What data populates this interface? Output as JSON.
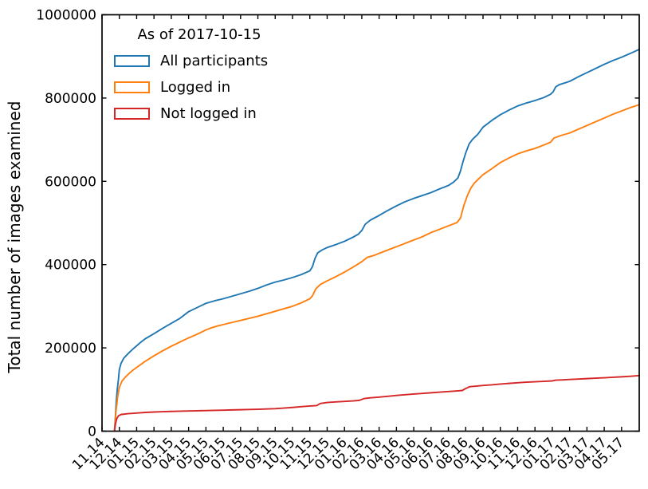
{
  "legend": {
    "title": "As of 2017-10-15"
  },
  "chart_data": {
    "type": "line",
    "title": "",
    "xlabel": "",
    "ylabel": "Total number of images examined",
    "grid": false,
    "legend_position": "upper left",
    "background_color": "#ffffff",
    "spine_color": "#000000",
    "xlim": [
      0,
      31.02
    ],
    "ylim": [
      0,
      1000000
    ],
    "x_unit": "month ticks, 0 = 11.14 (Nov 2014), 1 per month",
    "x_tick_labels": [
      "11.14",
      "12.14",
      "01.15",
      "02.15",
      "03.15",
      "04.15",
      "05.15",
      "06.15",
      "07.15",
      "08.15",
      "09.15",
      "10.15",
      "11.15",
      "12.15",
      "01.16",
      "02.16",
      "03.16",
      "04.16",
      "05.16",
      "06.16",
      "07.16",
      "08.16",
      "09.16",
      "10.16",
      "11.16",
      "12.16",
      "01.17",
      "02.17",
      "03.17",
      "04.17",
      "05.17"
    ],
    "y_ticks": [
      0,
      200000,
      400000,
      600000,
      800000,
      1000000
    ],
    "series": [
      {
        "name": "All participants",
        "color": "#1f77b4",
        "points": [
          [
            0.72,
            0
          ],
          [
            0.78,
            40000
          ],
          [
            0.82,
            70000
          ],
          [
            0.88,
            100000
          ],
          [
            0.95,
            125000
          ],
          [
            1.0,
            148000
          ],
          [
            1.1,
            163000
          ],
          [
            1.25,
            175000
          ],
          [
            1.5,
            186000
          ],
          [
            1.75,
            196000
          ],
          [
            2.0,
            205000
          ],
          [
            2.25,
            214000
          ],
          [
            2.5,
            222000
          ],
          [
            3.0,
            234000
          ],
          [
            3.5,
            247000
          ],
          [
            4.0,
            259000
          ],
          [
            4.5,
            271000
          ],
          [
            5.0,
            287000
          ],
          [
            5.3,
            293000
          ],
          [
            5.6,
            299000
          ],
          [
            6.0,
            307000
          ],
          [
            6.5,
            313000
          ],
          [
            7.0,
            318000
          ],
          [
            7.5,
            324000
          ],
          [
            8.0,
            330000
          ],
          [
            8.5,
            336000
          ],
          [
            9.0,
            343000
          ],
          [
            9.5,
            351000
          ],
          [
            10.0,
            358000
          ],
          [
            10.5,
            363000
          ],
          [
            11.0,
            369000
          ],
          [
            11.5,
            376000
          ],
          [
            12.0,
            385000
          ],
          [
            12.15,
            395000
          ],
          [
            12.3,
            415000
          ],
          [
            12.45,
            428000
          ],
          [
            12.7,
            435000
          ],
          [
            13.0,
            441000
          ],
          [
            13.5,
            448000
          ],
          [
            14.0,
            456000
          ],
          [
            14.5,
            466000
          ],
          [
            14.8,
            473000
          ],
          [
            15.0,
            482000
          ],
          [
            15.2,
            497000
          ],
          [
            15.5,
            507000
          ],
          [
            16.0,
            518000
          ],
          [
            16.5,
            530000
          ],
          [
            17.0,
            541000
          ],
          [
            17.5,
            551000
          ],
          [
            18.0,
            559000
          ],
          [
            18.5,
            566000
          ],
          [
            19.0,
            573000
          ],
          [
            19.5,
            582000
          ],
          [
            20.0,
            590000
          ],
          [
            20.3,
            598000
          ],
          [
            20.55,
            608000
          ],
          [
            20.7,
            625000
          ],
          [
            20.85,
            648000
          ],
          [
            21.0,
            668000
          ],
          [
            21.2,
            690000
          ],
          [
            21.4,
            701000
          ],
          [
            21.7,
            713000
          ],
          [
            22.0,
            730000
          ],
          [
            22.5,
            746000
          ],
          [
            23.0,
            760000
          ],
          [
            23.5,
            771000
          ],
          [
            24.0,
            781000
          ],
          [
            24.5,
            788000
          ],
          [
            25.0,
            794000
          ],
          [
            25.5,
            801000
          ],
          [
            25.9,
            809000
          ],
          [
            26.05,
            815000
          ],
          [
            26.2,
            827000
          ],
          [
            26.4,
            832000
          ],
          [
            27.0,
            840000
          ],
          [
            27.5,
            851000
          ],
          [
            28.0,
            861000
          ],
          [
            28.5,
            871000
          ],
          [
            29.0,
            881000
          ],
          [
            29.5,
            890000
          ],
          [
            30.0,
            898000
          ],
          [
            30.5,
            907000
          ],
          [
            31.02,
            917000
          ]
        ]
      },
      {
        "name": "Logged in",
        "color": "#ff7f0e",
        "points": [
          [
            0.72,
            0
          ],
          [
            0.8,
            45000
          ],
          [
            0.9,
            82000
          ],
          [
            1.0,
            105000
          ],
          [
            1.15,
            120000
          ],
          [
            1.35,
            130000
          ],
          [
            1.6,
            140000
          ],
          [
            1.8,
            147000
          ],
          [
            2.0,
            153000
          ],
          [
            2.5,
            168000
          ],
          [
            3.0,
            181000
          ],
          [
            3.5,
            193000
          ],
          [
            4.0,
            204000
          ],
          [
            4.5,
            214000
          ],
          [
            5.0,
            224000
          ],
          [
            5.5,
            233000
          ],
          [
            6.0,
            243000
          ],
          [
            6.3,
            248000
          ],
          [
            6.7,
            253000
          ],
          [
            7.0,
            256000
          ],
          [
            7.5,
            261000
          ],
          [
            8.0,
            266000
          ],
          [
            8.5,
            271000
          ],
          [
            9.0,
            276000
          ],
          [
            9.5,
            282000
          ],
          [
            10.0,
            288000
          ],
          [
            10.5,
            294000
          ],
          [
            11.0,
            300000
          ],
          [
            11.5,
            308000
          ],
          [
            12.0,
            318000
          ],
          [
            12.15,
            325000
          ],
          [
            12.35,
            342000
          ],
          [
            12.6,
            352000
          ],
          [
            13.0,
            361000
          ],
          [
            13.5,
            371000
          ],
          [
            14.0,
            382000
          ],
          [
            14.5,
            394000
          ],
          [
            15.0,
            407000
          ],
          [
            15.3,
            417000
          ],
          [
            15.7,
            422000
          ],
          [
            16.0,
            427000
          ],
          [
            16.5,
            435000
          ],
          [
            17.0,
            443000
          ],
          [
            17.5,
            451000
          ],
          [
            18.0,
            459000
          ],
          [
            18.5,
            467000
          ],
          [
            19.0,
            477000
          ],
          [
            19.5,
            485000
          ],
          [
            20.0,
            493000
          ],
          [
            20.5,
            501000
          ],
          [
            20.7,
            512000
          ],
          [
            20.9,
            543000
          ],
          [
            21.1,
            566000
          ],
          [
            21.3,
            584000
          ],
          [
            21.5,
            596000
          ],
          [
            22.0,
            616000
          ],
          [
            22.5,
            630000
          ],
          [
            23.0,
            645000
          ],
          [
            23.5,
            656000
          ],
          [
            24.0,
            666000
          ],
          [
            24.5,
            673000
          ],
          [
            25.0,
            679000
          ],
          [
            25.5,
            687000
          ],
          [
            25.9,
            694000
          ],
          [
            26.1,
            704000
          ],
          [
            26.5,
            710000
          ],
          [
            27.0,
            716000
          ],
          [
            27.5,
            725000
          ],
          [
            28.0,
            734000
          ],
          [
            28.5,
            743000
          ],
          [
            29.0,
            752000
          ],
          [
            29.5,
            761000
          ],
          [
            30.0,
            769000
          ],
          [
            30.5,
            777000
          ],
          [
            31.02,
            784000
          ]
        ]
      },
      {
        "name": "Not logged in",
        "color": "#d62728",
        "points": [
          [
            0.72,
            0
          ],
          [
            0.78,
            18000
          ],
          [
            0.85,
            30000
          ],
          [
            0.95,
            37000
          ],
          [
            1.1,
            40000
          ],
          [
            1.5,
            42000
          ],
          [
            2.0,
            43500
          ],
          [
            2.5,
            45000
          ],
          [
            3.0,
            46000
          ],
          [
            3.5,
            46800
          ],
          [
            4.0,
            47400
          ],
          [
            4.5,
            48000
          ],
          [
            5.0,
            48500
          ],
          [
            5.5,
            49000
          ],
          [
            6.0,
            49500
          ],
          [
            6.5,
            50000
          ],
          [
            7.0,
            50500
          ],
          [
            7.5,
            51000
          ],
          [
            8.0,
            51500
          ],
          [
            8.5,
            52000
          ],
          [
            9.0,
            52500
          ],
          [
            9.5,
            53200
          ],
          [
            10.0,
            54000
          ],
          [
            10.5,
            55500
          ],
          [
            11.0,
            57000
          ],
          [
            11.5,
            58800
          ],
          [
            12.0,
            60500
          ],
          [
            12.4,
            61500
          ],
          [
            12.6,
            66500
          ],
          [
            13.0,
            68800
          ],
          [
            13.5,
            70300
          ],
          [
            14.0,
            71500
          ],
          [
            14.5,
            72700
          ],
          [
            14.85,
            74000
          ],
          [
            15.15,
            78500
          ],
          [
            15.5,
            80000
          ],
          [
            16.0,
            81800
          ],
          [
            16.5,
            83800
          ],
          [
            17.0,
            85800
          ],
          [
            17.5,
            87600
          ],
          [
            18.0,
            89200
          ],
          [
            18.5,
            90700
          ],
          [
            19.0,
            92200
          ],
          [
            19.5,
            93700
          ],
          [
            20.0,
            95200
          ],
          [
            20.5,
            96700
          ],
          [
            20.8,
            97700
          ],
          [
            21.0,
            102500
          ],
          [
            21.25,
            107000
          ],
          [
            21.6,
            108200
          ],
          [
            22.0,
            109700
          ],
          [
            22.5,
            111200
          ],
          [
            23.0,
            113200
          ],
          [
            23.5,
            114700
          ],
          [
            24.0,
            116200
          ],
          [
            24.5,
            117600
          ],
          [
            25.0,
            118700
          ],
          [
            25.5,
            119700
          ],
          [
            26.0,
            120700
          ],
          [
            26.2,
            122500
          ],
          [
            26.6,
            123200
          ],
          [
            27.0,
            124200
          ],
          [
            27.5,
            125200
          ],
          [
            28.0,
            126200
          ],
          [
            28.5,
            127200
          ],
          [
            29.0,
            128300
          ],
          [
            29.5,
            129400
          ],
          [
            30.0,
            130500
          ],
          [
            30.5,
            131800
          ],
          [
            31.02,
            133500
          ]
        ]
      }
    ]
  }
}
